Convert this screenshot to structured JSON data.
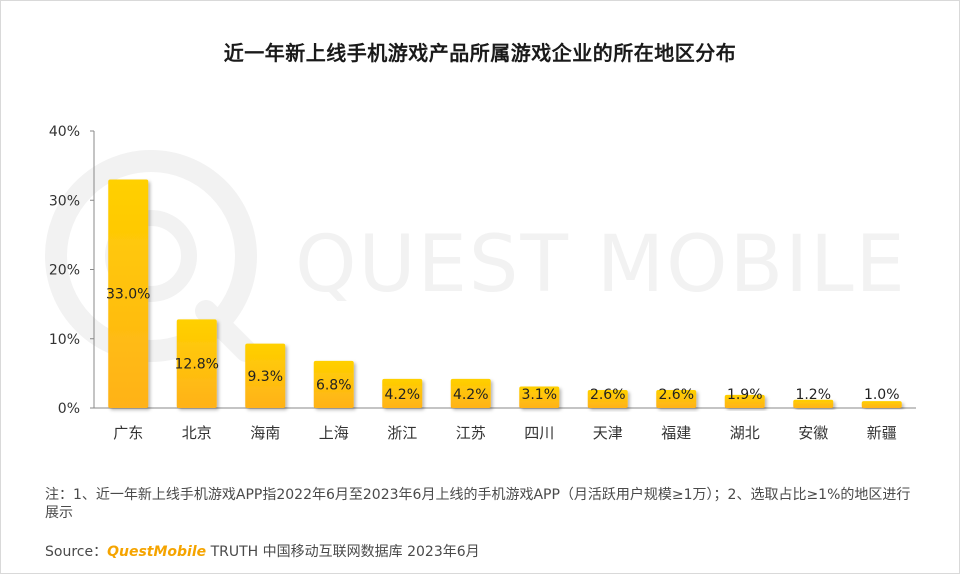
{
  "chart_data": {
    "type": "bar",
    "title": "近一年新上线手机游戏产品所属游戏企业的所在地区分布",
    "categories": [
      "广东",
      "北京",
      "海南",
      "上海",
      "浙江",
      "江苏",
      "四川",
      "天津",
      "福建",
      "湖北",
      "安徽",
      "新疆"
    ],
    "values": [
      33.0,
      12.8,
      9.3,
      6.8,
      4.2,
      4.2,
      3.1,
      2.6,
      2.6,
      1.9,
      1.2,
      1.0
    ],
    "value_labels": [
      "33.0%",
      "12.8%",
      "9.3%",
      "6.8%",
      "4.2%",
      "4.2%",
      "3.1%",
      "2.6%",
      "2.6%",
      "1.9%",
      "1.2%",
      "1.0%"
    ],
    "ylim": [
      0,
      40
    ],
    "y_ticks": [
      0,
      10,
      20,
      30,
      40
    ],
    "y_tick_labels": [
      "0%",
      "10%",
      "20%",
      "30%",
      "40%"
    ],
    "xlabel": "",
    "ylabel": "",
    "grid": false,
    "bar_color_top": "#FFD000",
    "bar_color_bottom": "#FFB21A"
  },
  "watermark": "QUEST MOBILE",
  "note": "注：1、近一年新上线手机游戏APP指2022年6月至2023年6月上线的手机游戏APP（月活跃用户规模≥1万）；2、选取占比≥1%的地区进行展示",
  "source": {
    "prefix": "Source：",
    "brand": "QuestMobile",
    "suffix": " TRUTH 中国移动互联网数据库 2023年6月"
  }
}
